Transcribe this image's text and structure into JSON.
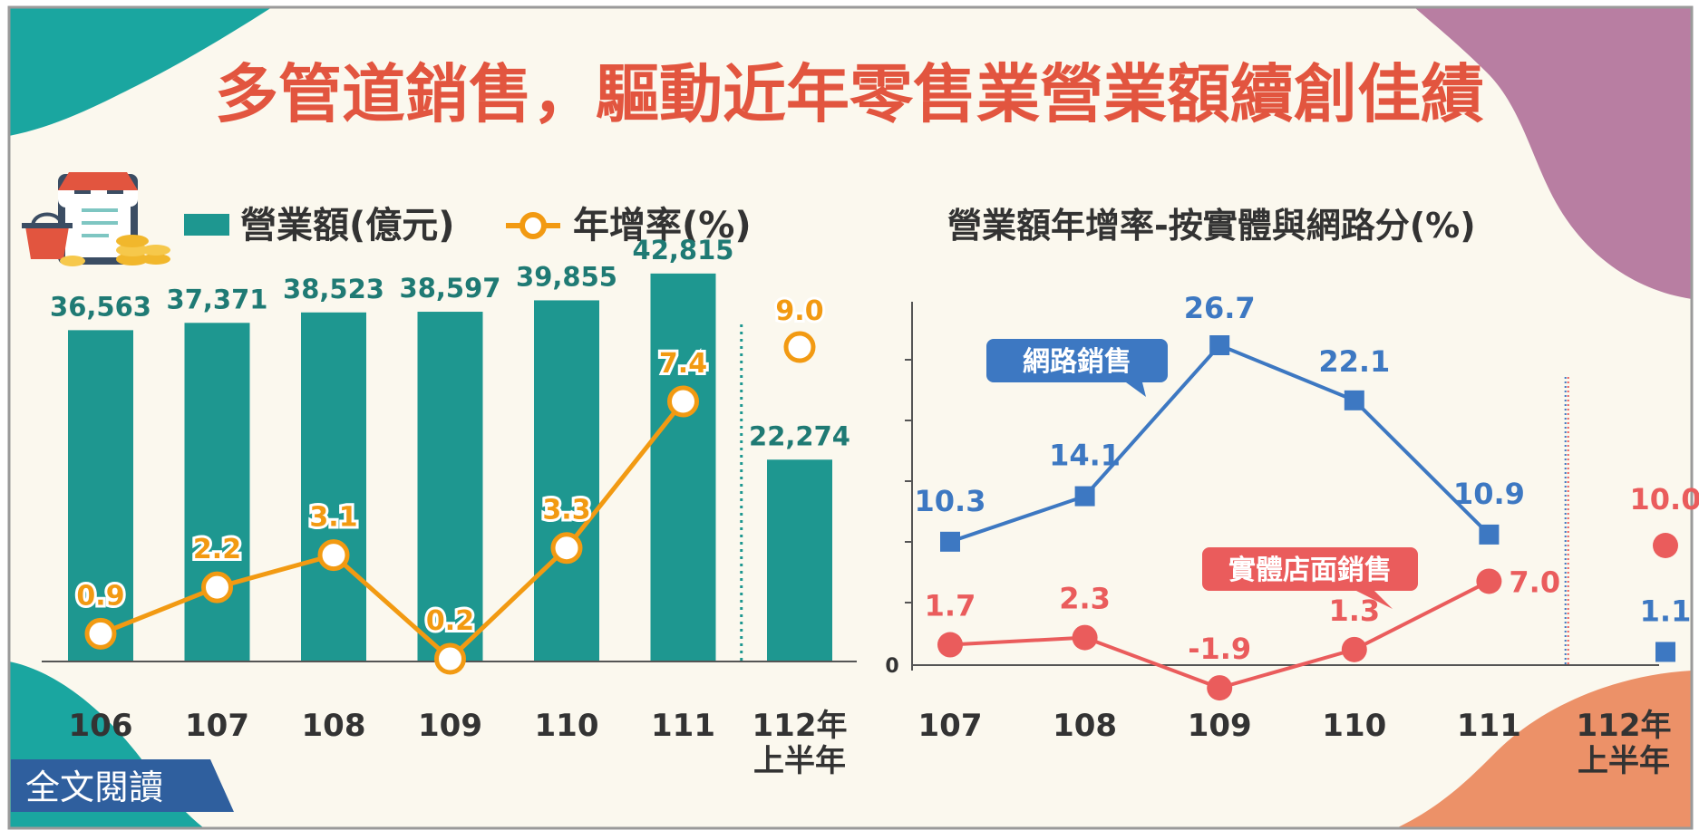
{
  "title": "多管道銷售，驅動近年零售業營業額續創佳績",
  "read_more": "全文閱讀",
  "colors": {
    "bar": "#1e9790",
    "growth_line": "#f29a12",
    "online": "#3d78c2",
    "store": "#ea5c5c",
    "title": "#e2553f",
    "background": "#fbf8ee"
  },
  "icons": [
    "shop-tablet-icon",
    "shopping-basket-icon",
    "coin-stack-icon"
  ],
  "chart_data": [
    {
      "type": "bar",
      "legend": {
        "bar_label": "營業額(億元)",
        "line_label": "年增率(%)"
      },
      "categories": [
        "106",
        "107",
        "108",
        "109",
        "110",
        "111",
        "112年\n上半年"
      ],
      "series": [
        {
          "name": "營業額(億元)",
          "values": [
            36563,
            37371,
            38523,
            38597,
            39855,
            42815,
            22274
          ],
          "labels": [
            "36,563",
            "37,371",
            "38,523",
            "38,597",
            "39,855",
            "42,815",
            "22,274"
          ]
        },
        {
          "name": "年增率(%)",
          "type": "line",
          "values": [
            0.9,
            2.2,
            3.1,
            0.2,
            3.3,
            7.4,
            9.0
          ],
          "labels": [
            "0.9",
            "2.2",
            "3.1",
            "0.2",
            "3.3",
            "7.4",
            "9.0"
          ]
        }
      ],
      "ylim": [
        0,
        45000
      ]
    },
    {
      "type": "line",
      "title": "營業額年增率-按實體與網路分(%)",
      "categories": [
        "107",
        "108",
        "109",
        "110",
        "111",
        "112年\n上半年"
      ],
      "y_zero_label": "0",
      "series": [
        {
          "name": "網路銷售",
          "marker": "square",
          "values": [
            10.3,
            14.1,
            26.7,
            22.1,
            10.9,
            1.1
          ],
          "labels": [
            "10.3",
            "14.1",
            "26.7",
            "22.1",
            "10.9",
            "1.1"
          ]
        },
        {
          "name": "實體店面銷售",
          "marker": "circle",
          "values": [
            1.7,
            2.3,
            -1.9,
            1.3,
            7.0,
            10.0
          ],
          "labels": [
            "1.7",
            "2.3",
            "-1.9",
            "1.3",
            "7.0",
            "10.0"
          ]
        }
      ],
      "ylim": [
        -2,
        28
      ]
    }
  ]
}
